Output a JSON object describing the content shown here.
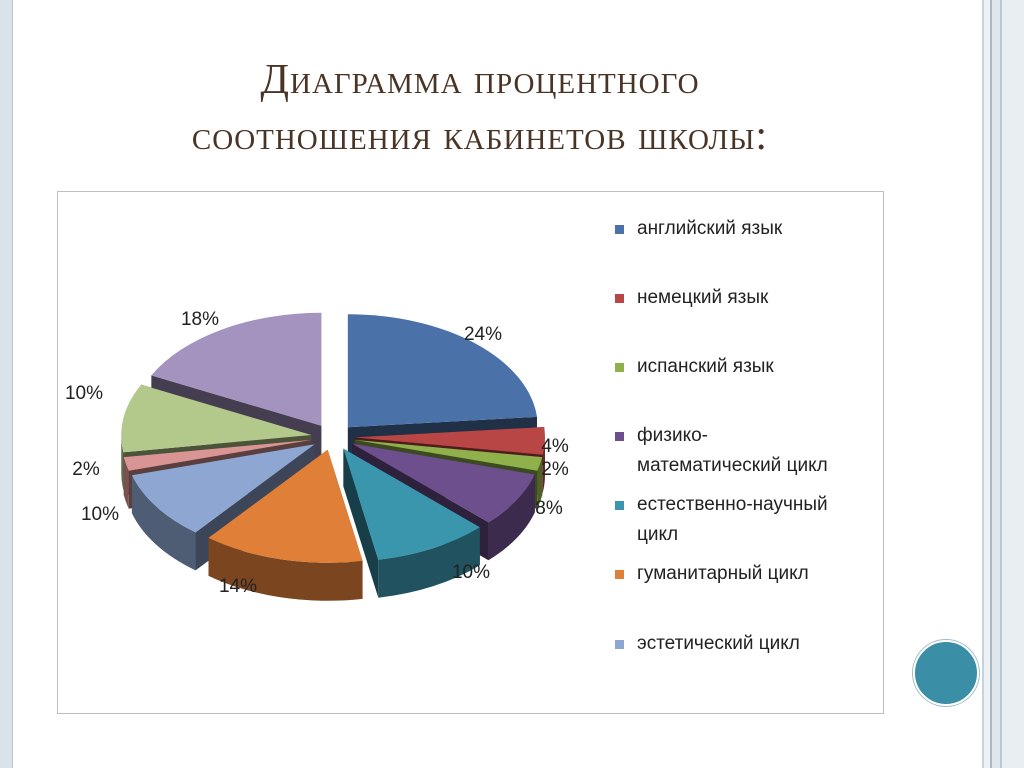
{
  "slide": {
    "title_line1": "Диаграмма процентного",
    "title_line2": "соотношения кабинетов школы:"
  },
  "chart_data": {
    "type": "pie",
    "title": "",
    "legend_position": "right",
    "slices": [
      {
        "name": "английский язык",
        "value": 24,
        "label": "24%",
        "color": "#4a72a8"
      },
      {
        "name": "немецкий язык",
        "value": 4,
        "label": "4%",
        "color": "#b84645"
      },
      {
        "name": "испанский язык",
        "value": 2,
        "label": "2%",
        "color": "#8fb04b"
      },
      {
        "name": "физико-математический цикл",
        "value": 8,
        "label": "8%",
        "color": "#6e4f8e"
      },
      {
        "name": "естественно-научный цикл",
        "value": 10,
        "label": "10%",
        "color": "#3a96ad"
      },
      {
        "name": "гуманитарный цикл",
        "value": 14,
        "label": "14%",
        "color": "#e07f38"
      },
      {
        "name": "эстетический цикл",
        "value": 10,
        "label": "10%",
        "color": "#8ea7d2"
      },
      {
        "name": "",
        "value": 2,
        "label": "2%",
        "color": "#d99594"
      },
      {
        "name": "",
        "value": 10,
        "label": "10%",
        "color": "#b3c88b"
      },
      {
        "name": "",
        "value": 18,
        "label": "18%",
        "color": "#a593bf"
      }
    ],
    "legend": [
      {
        "label": "английский язык",
        "color": "#4a72a8"
      },
      {
        "label": "немецкий язык",
        "color": "#b84645"
      },
      {
        "label": "испанский язык",
        "color": "#8fb04b"
      },
      {
        "label": "физико-\nматематический цикл",
        "color": "#6e4f8e"
      },
      {
        "label": "естественно-научный\nцикл",
        "color": "#3a96ad"
      },
      {
        "label": "гуманитарный цикл",
        "color": "#e07f38"
      },
      {
        "label": "эстетический цикл",
        "color": "#8ea7d2"
      }
    ]
  }
}
